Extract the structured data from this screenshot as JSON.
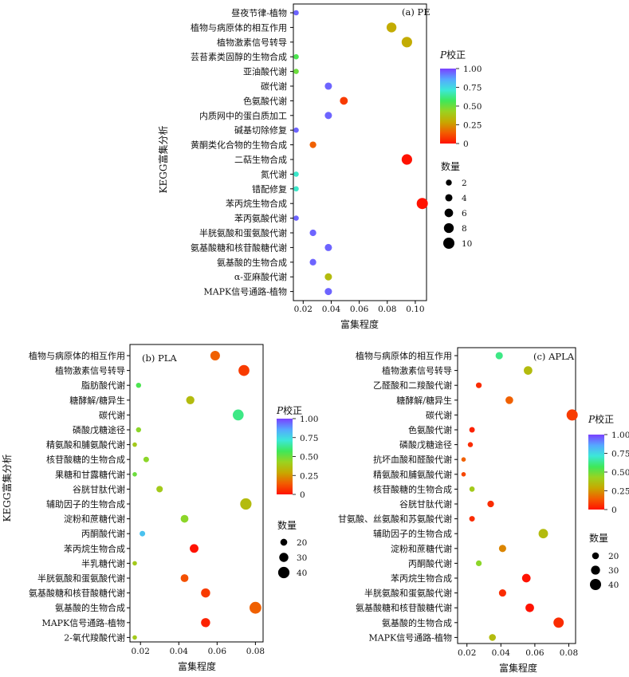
{
  "figure": {
    "ylabel": "KEGG富集分析",
    "xlabel": "富集程度",
    "color_legend_title": "P校正",
    "size_legend_title": "数量"
  },
  "chart_data": [
    {
      "id": "pe",
      "type": "scatter",
      "panel_label": "(a) PE",
      "xlabel": "富集程度",
      "ylabel": "KEGG富集分析",
      "xlim": [
        0.013,
        0.108
      ],
      "xticks": [
        0.02,
        0.04,
        0.06,
        0.08,
        0.1
      ],
      "xtick_labels": [
        "0.02",
        "0.04",
        "0.06",
        "0.08",
        "0.10"
      ],
      "color_scale": {
        "min": 0,
        "max": 1.0,
        "ticks": [
          0,
          0.25,
          0.5,
          0.75,
          1.0
        ],
        "tick_labels": [
          "0",
          "0.25",
          "0.50",
          "0.75",
          "1.00"
        ]
      },
      "size_scale": {
        "ticks": [
          2,
          4,
          6,
          8,
          10
        ],
        "tick_labels": [
          "2",
          "4",
          "6",
          "8",
          "10"
        ]
      },
      "categories": [
        "昼夜节律-植物",
        "植物与病原体的相互作用",
        "植物激素信号转导",
        "芸苔素类固醇的生物合成",
        "亚油酸代谢",
        "碳代谢",
        "色氨酸代谢",
        "内质网中的蛋白质加工",
        "碱基切除修复",
        "黄酮类化合物的生物合成",
        "二萜生物合成",
        "氮代谢",
        "错配修复",
        "苯丙烷生物合成",
        "苯丙氨酸代谢",
        "半胱氨酸和蛋氨酸代谢",
        "氨基酸糖和核苷酸糖代谢",
        "氨基酸的生物合成",
        "α-亚麻酸代谢",
        "MAPK信号通路-植物"
      ],
      "points": [
        {
          "category": "昼夜节律-植物",
          "x": 0.015,
          "count": 1,
          "p_adj": 0.95
        },
        {
          "category": "植物与病原体的相互作用",
          "x": 0.083,
          "count": 8,
          "p_adj": 0.3
        },
        {
          "category": "植物激素信号转导",
          "x": 0.094,
          "count": 9,
          "p_adj": 0.3
        },
        {
          "category": "芸苔素类固醇的生物合成",
          "x": 0.015,
          "count": 1,
          "p_adj": 0.55
        },
        {
          "category": "亚油酸代谢",
          "x": 0.015,
          "count": 1,
          "p_adj": 0.5
        },
        {
          "category": "碳代谢",
          "x": 0.038,
          "count": 4,
          "p_adj": 0.95
        },
        {
          "category": "色氨酸代谢",
          "x": 0.049,
          "count": 5,
          "p_adj": 0.08
        },
        {
          "category": "内质网中的蛋白质加工",
          "x": 0.038,
          "count": 4,
          "p_adj": 0.95
        },
        {
          "category": "碱基切除修复",
          "x": 0.015,
          "count": 1,
          "p_adj": 0.95
        },
        {
          "category": "黄酮类化合物的生物合成",
          "x": 0.027,
          "count": 3,
          "p_adj": 0.15
        },
        {
          "category": "二萜生物合成",
          "x": 0.094,
          "count": 9,
          "p_adj": 0.0
        },
        {
          "category": "氮代谢",
          "x": 0.015,
          "count": 1,
          "p_adj": 0.7
        },
        {
          "category": "错配修复",
          "x": 0.015,
          "count": 1,
          "p_adj": 0.7
        },
        {
          "category": "苯丙烷生物合成",
          "x": 0.105,
          "count": 10,
          "p_adj": 0.0
        },
        {
          "category": "苯丙氨酸代谢",
          "x": 0.015,
          "count": 1,
          "p_adj": 0.95
        },
        {
          "category": "半胱氨酸和蛋氨酸代谢",
          "x": 0.027,
          "count": 3,
          "p_adj": 0.95
        },
        {
          "category": "氨基酸糖和核苷酸糖代谢",
          "x": 0.038,
          "count": 4,
          "p_adj": 0.95
        },
        {
          "category": "氨基酸的生物合成",
          "x": 0.027,
          "count": 3,
          "p_adj": 0.95
        },
        {
          "category": "α-亚麻酸代谢",
          "x": 0.038,
          "count": 4,
          "p_adj": 0.35
        },
        {
          "category": "MAPK信号通路-植物",
          "x": 0.038,
          "count": 4,
          "p_adj": 0.95
        }
      ]
    },
    {
      "id": "pla",
      "type": "scatter",
      "panel_label": "(b) PLA",
      "xlabel": "富集程度",
      "ylabel": "KEGG富集分析",
      "xlim": [
        0.0145,
        0.084
      ],
      "xticks": [
        0.02,
        0.04,
        0.06,
        0.08
      ],
      "xtick_labels": [
        "0.02",
        "0.04",
        "0.06",
        "0.08"
      ],
      "color_scale": {
        "min": 0,
        "max": 1.0,
        "ticks": [
          0,
          0.25,
          0.5,
          0.75,
          1.0
        ],
        "tick_labels": [
          "0",
          "0.25",
          "0.50",
          "0.75",
          "1.00"
        ]
      },
      "size_scale": {
        "ticks": [
          20,
          30,
          40
        ],
        "tick_labels": [
          "20",
          "30",
          "40"
        ]
      },
      "categories": [
        "植物与病原体的相互作用",
        "植物激素信号转导",
        "脂肪酸代谢",
        "糖酵解/糖异生",
        "碳代谢",
        "磷酸戊糖途径",
        "精氨酸和脯氨酸代谢",
        "核苷酸糖的生物合成",
        "果糖和甘露糖代谢",
        "谷胱甘肽代谢",
        "辅助因子的生物合成",
        "淀粉和蔗糖代谢",
        "丙酮酸代谢",
        "苯丙烷生物合成",
        "半乳糖代谢",
        "半胱氨酸和蛋氨酸代谢",
        "氨基酸糖和核苷酸糖代谢",
        "氨基酸的生物合成",
        "MAPK信号通路-植物",
        "2-氧代羧酸代谢"
      ],
      "points": [
        {
          "category": "植物与病原体的相互作用",
          "x": 0.059,
          "count": 32,
          "p_adj": 0.15
        },
        {
          "category": "植物激素信号转导",
          "x": 0.074,
          "count": 38,
          "p_adj": 0.08
        },
        {
          "category": "脂肪酸代谢",
          "x": 0.019,
          "count": 12,
          "p_adj": 0.55
        },
        {
          "category": "糖酵解/糖异生",
          "x": 0.046,
          "count": 26,
          "p_adj": 0.35
        },
        {
          "category": "碳代谢",
          "x": 0.071,
          "count": 38,
          "p_adj": 0.62
        },
        {
          "category": "磷酸戊糖途径",
          "x": 0.019,
          "count": 12,
          "p_adj": 0.45
        },
        {
          "category": "精氨酸和脯氨酸代谢",
          "x": 0.017,
          "count": 9,
          "p_adj": 0.4
        },
        {
          "category": "核苷酸糖的生物合成",
          "x": 0.023,
          "count": 14,
          "p_adj": 0.45
        },
        {
          "category": "果糖和甘露糖代谢",
          "x": 0.017,
          "count": 9,
          "p_adj": 0.5
        },
        {
          "category": "谷胱甘肽代谢",
          "x": 0.03,
          "count": 18,
          "p_adj": 0.4
        },
        {
          "category": "辅助因子的生物合成",
          "x": 0.075,
          "count": 40,
          "p_adj": 0.35
        },
        {
          "category": "淀粉和蔗糖代谢",
          "x": 0.043,
          "count": 24,
          "p_adj": 0.45
        },
        {
          "category": "丙酮酸代谢",
          "x": 0.021,
          "count": 14,
          "p_adj": 0.8
        },
        {
          "category": "苯丙烷生物合成",
          "x": 0.048,
          "count": 28,
          "p_adj": 0.0
        },
        {
          "category": "半乳糖代谢",
          "x": 0.017,
          "count": 9,
          "p_adj": 0.4
        },
        {
          "category": "半胱氨酸和蛋氨酸代谢",
          "x": 0.043,
          "count": 24,
          "p_adj": 0.12
        },
        {
          "category": "氨基酸糖和核苷酸糖代谢",
          "x": 0.054,
          "count": 30,
          "p_adj": 0.08
        },
        {
          "category": "氨基酸的生物合成",
          "x": 0.08,
          "count": 42,
          "p_adj": 0.15
        },
        {
          "category": "MAPK信号通路-植物",
          "x": 0.054,
          "count": 30,
          "p_adj": 0.03
        },
        {
          "category": "2-氧代羧酸代谢",
          "x": 0.017,
          "count": 9,
          "p_adj": 0.4
        }
      ]
    },
    {
      "id": "apla",
      "type": "scatter",
      "panel_label": "(c) APLA",
      "xlabel": "富集程度",
      "ylabel": "KEGG富集分析",
      "xlim": [
        0.0145,
        0.084
      ],
      "xticks": [
        0.02,
        0.04,
        0.06,
        0.08
      ],
      "xtick_labels": [
        "0.02",
        "0.04",
        "0.06",
        "0.08"
      ],
      "color_scale": {
        "min": 0,
        "max": 1.0,
        "ticks": [
          0,
          0.25,
          0.5,
          0.75,
          1.0
        ],
        "tick_labels": [
          "0",
          "0.25",
          "0.50",
          "0.75",
          "1.00"
        ]
      },
      "size_scale": {
        "ticks": [
          20,
          30,
          40
        ],
        "tick_labels": [
          "20",
          "30",
          "40"
        ]
      },
      "categories": [
        "植物与病原体的相互作用",
        "植物激素信号转导",
        "乙醛酸和二羧酸代谢",
        "糖酵解/糖异生",
        "碳代谢",
        "色氨酸代谢",
        "磷酸戊糖途径",
        "抗坏血酸和醛酸代谢",
        "精氨酸和脯氨酸代谢",
        "核苷酸糖的生物合成",
        "谷胱甘肽代谢",
        "甘氨酸、丝氨酸和苏氨酸代谢",
        "辅助因子的生物合成",
        "淀粉和蔗糖代谢",
        "丙酮酸代谢",
        "苯丙烷生物合成",
        "半胱氨酸和蛋氨酸代谢",
        "氨基酸糖和核苷酸糖代谢",
        "氨基酸的生物合成",
        "MAPK信号通路-植物"
      ],
      "points": [
        {
          "category": "植物与病原体的相互作用",
          "x": 0.039,
          "count": 22,
          "p_adj": 0.62
        },
        {
          "category": "植物激素信号转导",
          "x": 0.056,
          "count": 28,
          "p_adj": 0.35
        },
        {
          "category": "乙醛酸和二羧酸代谢",
          "x": 0.027,
          "count": 15,
          "p_adj": 0.05
        },
        {
          "category": "糖酵解/糖异生",
          "x": 0.045,
          "count": 24,
          "p_adj": 0.15
        },
        {
          "category": "碳代谢",
          "x": 0.082,
          "count": 40,
          "p_adj": 0.08
        },
        {
          "category": "色氨酸代谢",
          "x": 0.023,
          "count": 14,
          "p_adj": 0.03
        },
        {
          "category": "磷酸戊糖途径",
          "x": 0.022,
          "count": 12,
          "p_adj": 0.05
        },
        {
          "category": "抗坏血酸和醛酸代谢",
          "x": 0.018,
          "count": 9,
          "p_adj": 0.15
        },
        {
          "category": "精氨酸和脯氨酸代谢",
          "x": 0.018,
          "count": 9,
          "p_adj": 0.1
        },
        {
          "category": "核苷酸糖的生物合成",
          "x": 0.023,
          "count": 13,
          "p_adj": 0.4
        },
        {
          "category": "谷胱甘肽代谢",
          "x": 0.034,
          "count": 19,
          "p_adj": 0.05
        },
        {
          "category": "甘氨酸、丝氨酸和苏氨酸代谢",
          "x": 0.023,
          "count": 14,
          "p_adj": 0.05
        },
        {
          "category": "辅助因子的生物合成",
          "x": 0.065,
          "count": 32,
          "p_adj": 0.35
        },
        {
          "category": "淀粉和蔗糖代谢",
          "x": 0.041,
          "count": 22,
          "p_adj": 0.22
        },
        {
          "category": "丙酮酸代谢",
          "x": 0.027,
          "count": 15,
          "p_adj": 0.45
        },
        {
          "category": "苯丙烷生物合成",
          "x": 0.055,
          "count": 28,
          "p_adj": 0.0
        },
        {
          "category": "半胱氨酸和蛋氨酸代谢",
          "x": 0.041,
          "count": 22,
          "p_adj": 0.05
        },
        {
          "category": "氨基酸糖和核苷酸糖代谢",
          "x": 0.057,
          "count": 28,
          "p_adj": 0.0
        },
        {
          "category": "氨基酸的生物合成",
          "x": 0.074,
          "count": 36,
          "p_adj": 0.05
        },
        {
          "category": "MAPK信号通路-植物",
          "x": 0.035,
          "count": 20,
          "p_adj": 0.35
        }
      ]
    }
  ],
  "colors": {
    "gradient_stops": [
      "#ff1200",
      "#f25c00",
      "#c8a800",
      "#9ad320",
      "#3ee85a",
      "#3ce8d8",
      "#55a8ff",
      "#7a40ff"
    ],
    "plot_background": "#ffffff",
    "axis": "#000000"
  }
}
